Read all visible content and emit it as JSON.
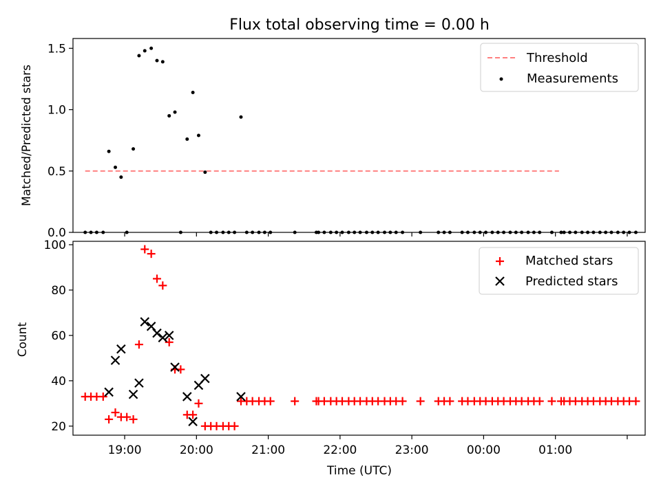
{
  "chart_data": [
    {
      "type": "scatter",
      "title": "Flux total observing time = 0.00 h",
      "xlabel": "",
      "ylabel": "Matched/Predicted stars",
      "xlim": [
        -0.72,
        7.25
      ],
      "ylim": [
        0,
        1.58
      ],
      "yticks": [
        0,
        0.5,
        1.0,
        1.5
      ],
      "ytick_labels": [
        "0.0",
        "0.5",
        "1.0",
        "1.5"
      ],
      "legend_position": "upper right",
      "legend": [
        "Threshold",
        "Measurements"
      ],
      "threshold": {
        "name": "Threshold",
        "value": 0.5,
        "x_range": [
          -0.55,
          6.05
        ],
        "color": "#ff7f7f"
      },
      "measurements": {
        "name": "Measurements",
        "x": [
          -0.55,
          -0.47,
          -0.39,
          -0.3,
          -0.22,
          -0.13,
          -0.05,
          0.03,
          0.12,
          0.2,
          0.28,
          0.37,
          0.45,
          0.53,
          0.62,
          0.7,
          0.78,
          0.87,
          0.95,
          1.03,
          1.12,
          1.2,
          1.28,
          1.37,
          1.45,
          1.53,
          1.62,
          1.7,
          1.78,
          1.87,
          1.95,
          2.03,
          2.37,
          2.67,
          2.7,
          2.78,
          2.87,
          2.95,
          3.03,
          3.12,
          3.2,
          3.28,
          3.37,
          3.45,
          3.53,
          3.62,
          3.7,
          3.78,
          3.87,
          4.12,
          4.37,
          4.45,
          4.53,
          4.7,
          4.78,
          4.87,
          4.95,
          5.03,
          5.12,
          5.2,
          5.28,
          5.37,
          5.45,
          5.53,
          5.62,
          5.7,
          5.78,
          5.95,
          6.08,
          6.12,
          6.2,
          6.28,
          6.37,
          6.45,
          6.53,
          6.62,
          6.7,
          6.78,
          6.87,
          6.95,
          7.03,
          7.12
        ],
        "y": [
          0,
          0,
          0,
          0,
          0.66,
          0.53,
          0.45,
          0,
          0.68,
          1.44,
          1.48,
          1.5,
          1.4,
          1.39,
          0.95,
          0.98,
          0,
          0.76,
          1.14,
          0.79,
          0.49,
          0,
          0,
          0,
          0,
          0,
          0.94,
          0,
          0,
          0,
          0,
          0,
          0,
          0,
          0,
          0,
          0,
          0,
          0,
          0,
          0,
          0,
          0,
          0,
          0,
          0,
          0,
          0,
          0,
          0,
          0,
          0,
          0,
          0,
          0,
          0,
          0,
          0,
          0,
          0,
          0,
          0,
          0,
          0,
          0,
          0,
          0,
          0,
          0,
          0,
          0,
          0,
          0,
          0,
          0,
          0,
          0,
          0,
          0,
          0,
          0,
          0
        ],
        "color": "#000000"
      }
    },
    {
      "type": "scatter",
      "title": "",
      "xlabel": "Time (UTC)",
      "ylabel": "Count",
      "xlim": [
        -0.72,
        7.25
      ],
      "ylim": [
        16,
        101.5
      ],
      "yticks": [
        20,
        40,
        60,
        80,
        100
      ],
      "ytick_labels": [
        "20",
        "40",
        "60",
        "80",
        "100"
      ],
      "xticks": [
        0,
        1,
        2,
        3,
        4,
        5,
        6,
        7
      ],
      "xtick_labels": [
        "19:00",
        "20:00",
        "21:00",
        "22:00",
        "23:00",
        "00:00",
        "01:00",
        ""
      ],
      "legend_position": "upper right",
      "legend": [
        "Matched stars",
        "Predicted stars"
      ],
      "series": [
        {
          "name": "Matched stars",
          "marker": "plus",
          "color": "#ff0000",
          "x": [
            -0.55,
            -0.47,
            -0.39,
            -0.3,
            -0.22,
            -0.13,
            -0.05,
            0.03,
            0.12,
            0.2,
            0.28,
            0.37,
            0.45,
            0.53,
            0.62,
            0.7,
            0.78,
            0.87,
            0.95,
            1.03,
            1.12,
            1.2,
            1.28,
            1.37,
            1.45,
            1.53,
            1.62,
            1.7,
            1.78,
            1.87,
            1.95,
            2.03,
            2.37,
            2.67,
            2.7,
            2.78,
            2.87,
            2.95,
            3.03,
            3.12,
            3.2,
            3.28,
            3.37,
            3.45,
            3.53,
            3.62,
            3.7,
            3.78,
            3.87,
            4.12,
            4.37,
            4.45,
            4.53,
            4.7,
            4.78,
            4.87,
            4.95,
            5.03,
            5.12,
            5.2,
            5.28,
            5.37,
            5.45,
            5.53,
            5.62,
            5.7,
            5.78,
            5.95,
            6.08,
            6.12,
            6.2,
            6.28,
            6.37,
            6.45,
            6.53,
            6.62,
            6.7,
            6.78,
            6.87,
            6.95,
            7.03,
            7.12
          ],
          "y": [
            33,
            33,
            33,
            33,
            23,
            26,
            24,
            24,
            23,
            56,
            98,
            96,
            85,
            82,
            57,
            45,
            45,
            25,
            25,
            30,
            20,
            20,
            20,
            20,
            20,
            20,
            31,
            31,
            31,
            31,
            31,
            31,
            31,
            31,
            31,
            31,
            31,
            31,
            31,
            31,
            31,
            31,
            31,
            31,
            31,
            31,
            31,
            31,
            31,
            31,
            31,
            31,
            31,
            31,
            31,
            31,
            31,
            31,
            31,
            31,
            31,
            31,
            31,
            31,
            31,
            31,
            31,
            31,
            31,
            31,
            31,
            31,
            31,
            31,
            31,
            31,
            31,
            31,
            31,
            31,
            31,
            31
          ]
        },
        {
          "name": "Predicted stars",
          "marker": "x",
          "color": "#000000",
          "x": [
            -0.22,
            -0.13,
            -0.05,
            0.12,
            0.2,
            0.28,
            0.37,
            0.45,
            0.53,
            0.62,
            0.7,
            0.87,
            0.95,
            1.03,
            1.12,
            1.62
          ],
          "y": [
            35,
            49,
            54,
            34,
            39,
            66,
            64,
            61,
            59,
            60,
            46,
            33,
            22,
            38,
            41,
            33
          ]
        }
      ]
    }
  ]
}
